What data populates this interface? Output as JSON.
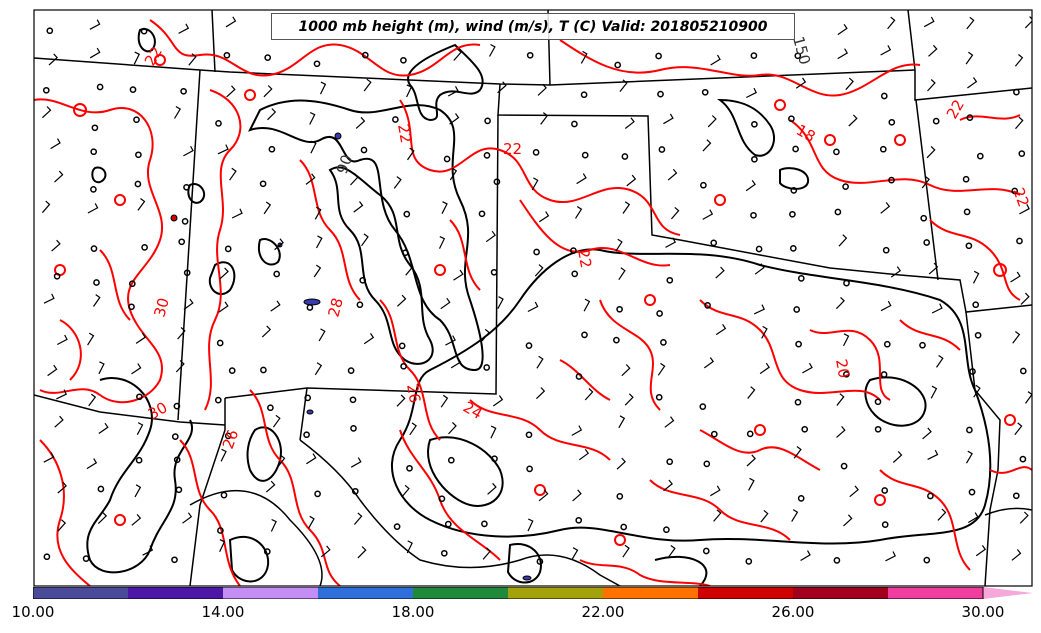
{
  "title": "1000 mb height (m), wind (m/s), T (C) Valid: 201805210900",
  "colorbar": {
    "min": 10,
    "max": 30,
    "tick_labels": [
      "10.00",
      "14.00",
      "18.00",
      "22.00",
      "26.00",
      "30.00"
    ],
    "tick_values": [
      10,
      14,
      18,
      22,
      26,
      30
    ],
    "segments": [
      {
        "from": 10,
        "to": 12,
        "color": "#4a4a9a"
      },
      {
        "from": 12,
        "to": 14,
        "color": "#4c17a6"
      },
      {
        "from": 14,
        "to": 16,
        "color": "#c58ef5"
      },
      {
        "from": 16,
        "to": 18,
        "color": "#2f6fdc"
      },
      {
        "from": 18,
        "to": 20,
        "color": "#1f8a3c"
      },
      {
        "from": 20,
        "to": 22,
        "color": "#a3a20d"
      },
      {
        "from": 22,
        "to": 24,
        "color": "#ff7200"
      },
      {
        "from": 24,
        "to": 26,
        "color": "#d10000"
      },
      {
        "from": 26,
        "to": 28,
        "color": "#a0001b"
      },
      {
        "from": 28,
        "to": 30,
        "color": "#f03ea0"
      }
    ],
    "extend_color": "#f7a8da"
  },
  "contour_colors": {
    "temperature": "#ff0000",
    "height": "#000000",
    "boundary": "#000000",
    "cold_fill": "#3b3bb0"
  },
  "temperature_labels": [
    "22",
    "22",
    "22",
    "22",
    "22",
    "22",
    "18",
    "28",
    "30",
    "30",
    "24",
    "20",
    "26",
    "26"
  ],
  "height_labels": [
    "150",
    "90"
  ]
}
